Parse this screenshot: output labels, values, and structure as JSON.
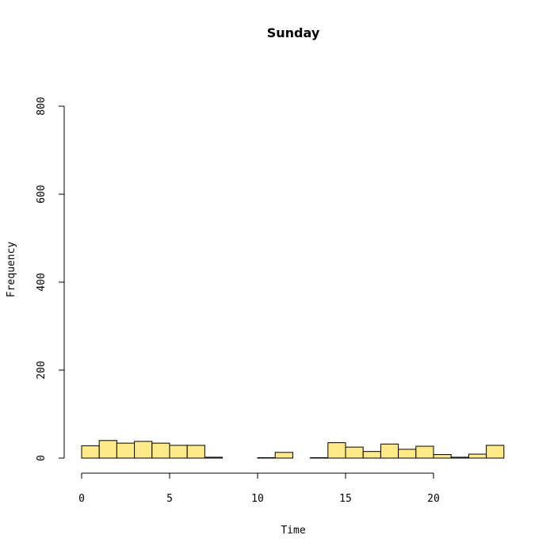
{
  "chart_data": {
    "type": "bar",
    "title": "Sunday",
    "xlabel": "Time",
    "ylabel": "Frequency",
    "xlim": [
      0,
      24
    ],
    "ylim": [
      0,
      800
    ],
    "x_ticks": [
      0,
      5,
      10,
      15,
      20
    ],
    "y_ticks": [
      0,
      200,
      400,
      600,
      800
    ],
    "bin_width": 1,
    "bin_starts": [
      0,
      1,
      2,
      3,
      4,
      5,
      6,
      7,
      8,
      9,
      10,
      11,
      12,
      13,
      14,
      15,
      16,
      17,
      18,
      19,
      20,
      21,
      22,
      23
    ],
    "values": [
      28,
      40,
      34,
      38,
      34,
      29,
      29,
      2,
      0,
      0,
      1,
      13,
      0,
      1,
      35,
      25,
      15,
      32,
      20,
      27,
      8,
      2,
      9,
      29
    ],
    "grid": false,
    "legend": "none",
    "colors": {
      "bar_fill": "#FFEA8A",
      "stroke": "#000000"
    }
  }
}
